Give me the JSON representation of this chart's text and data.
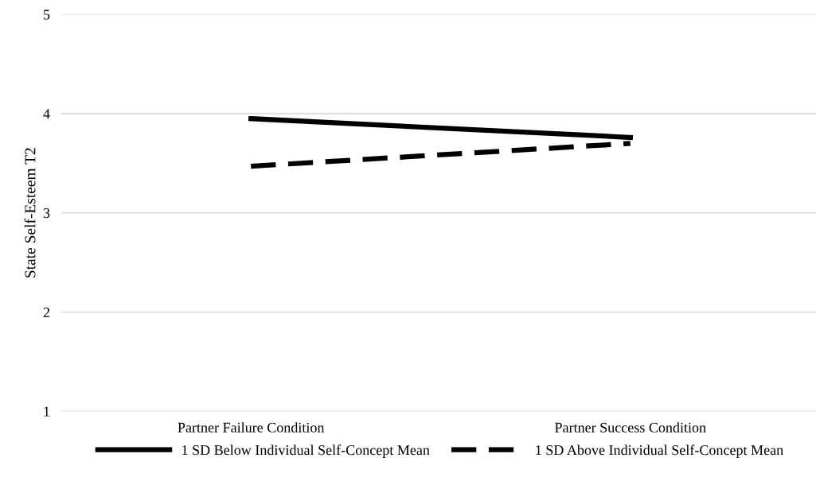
{
  "chart_data": {
    "type": "line",
    "ylabel": "State Self-Esteem T2",
    "categories": [
      "Partner Failure Condition",
      "Partner Success Condition"
    ],
    "series": [
      {
        "name": "1 SD Below Individual Self-Concept Mean",
        "color": "#000000",
        "values": [
          3.95,
          3.76
        ],
        "line_style": "solid"
      },
      {
        "name": "1 SD Above Individual Self-Concept Mean",
        "color": "#000000",
        "values": [
          3.47,
          3.7
        ],
        "line_style": "dashed"
      }
    ],
    "ylim": [
      1,
      5
    ],
    "yticks": [
      1,
      2,
      3,
      4,
      5
    ],
    "grid": "y",
    "legend": "bottom",
    "marker": "none"
  }
}
